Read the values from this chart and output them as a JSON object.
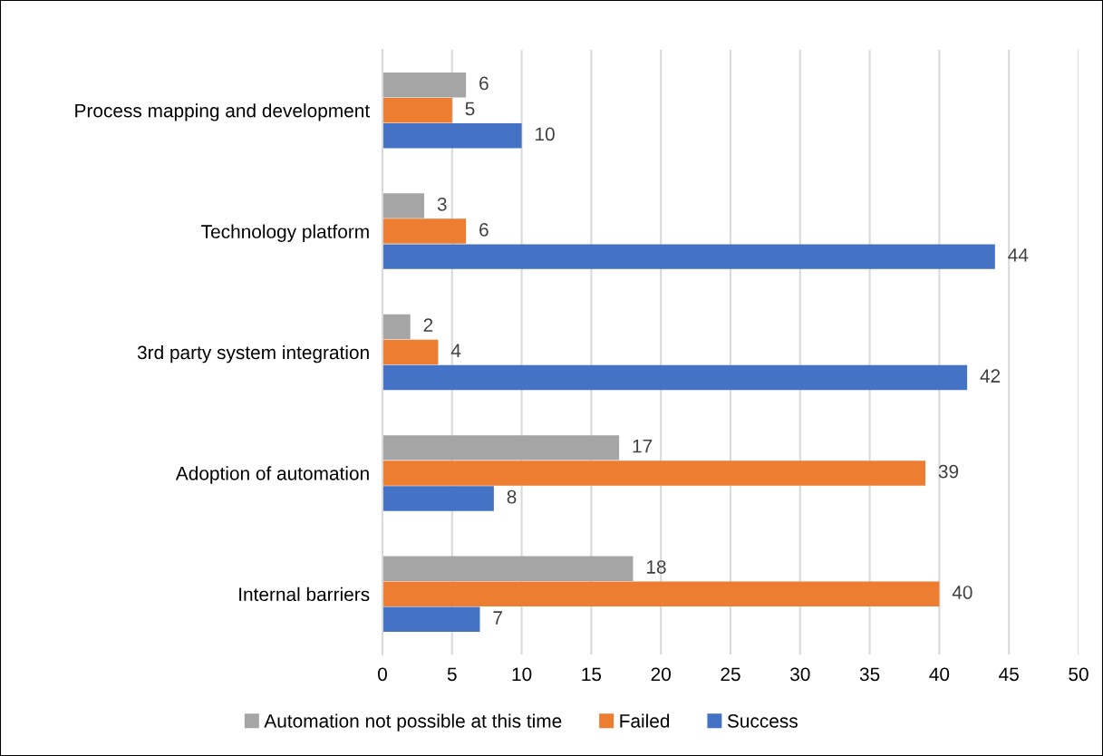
{
  "chart_data": {
    "type": "bar",
    "orientation": "horizontal",
    "categories": [
      "Process mapping and development",
      "Technology platform",
      "3rd party system integration",
      "Adoption of automation",
      "Internal barriers"
    ],
    "series": [
      {
        "name": "Automation not possible at this time",
        "color": "#a5a5a5",
        "values": [
          6,
          3,
          2,
          17,
          18
        ]
      },
      {
        "name": "Failed",
        "color": "#ed7d31",
        "values": [
          5,
          6,
          4,
          39,
          40
        ]
      },
      {
        "name": "Success",
        "color": "#4472c4",
        "values": [
          10,
          44,
          42,
          8,
          7
        ]
      }
    ],
    "xlim": [
      0,
      50
    ],
    "xticks": [
      0,
      5,
      10,
      15,
      20,
      25,
      30,
      35,
      40,
      45,
      50
    ],
    "grid": "x",
    "legend": "bottom",
    "data_labels": true
  }
}
